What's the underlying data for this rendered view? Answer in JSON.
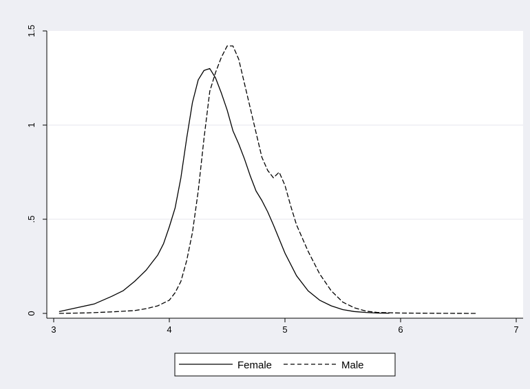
{
  "chart_data": {
    "type": "line",
    "title": "",
    "xlabel": "",
    "ylabel": "",
    "xlim": [
      3,
      7
    ],
    "ylim": [
      0,
      1.5
    ],
    "xticks": [
      3,
      4,
      5,
      6,
      7
    ],
    "xtick_labels": [
      "3",
      "4",
      "5",
      "6",
      "7"
    ],
    "yticks": [
      0,
      0.5,
      1,
      1.5
    ],
    "ytick_labels": [
      "0",
      ".5",
      "1",
      "1.5"
    ],
    "grid": "horizontal",
    "legend_position": "bottom",
    "series": [
      {
        "name": "Female",
        "style": "solid",
        "color": "#000000",
        "x": [
          3.05,
          3.2,
          3.35,
          3.5,
          3.6,
          3.7,
          3.75,
          3.8,
          3.85,
          3.9,
          3.95,
          4.0,
          4.05,
          4.1,
          4.15,
          4.2,
          4.25,
          4.3,
          4.35,
          4.4,
          4.45,
          4.5,
          4.55,
          4.6,
          4.65,
          4.7,
          4.75,
          4.8,
          4.85,
          4.9,
          5.0,
          5.1,
          5.2,
          5.3,
          5.4,
          5.5,
          5.6,
          5.7,
          5.8,
          5.9
        ],
        "y": [
          0.01,
          0.03,
          0.05,
          0.09,
          0.12,
          0.17,
          0.2,
          0.23,
          0.27,
          0.31,
          0.37,
          0.46,
          0.56,
          0.72,
          0.93,
          1.12,
          1.24,
          1.29,
          1.3,
          1.25,
          1.17,
          1.08,
          0.97,
          0.9,
          0.82,
          0.73,
          0.65,
          0.6,
          0.54,
          0.47,
          0.32,
          0.2,
          0.12,
          0.07,
          0.04,
          0.02,
          0.01,
          0.005,
          0.002,
          0.001
        ]
      },
      {
        "name": "Male",
        "style": "dashed",
        "color": "#000000",
        "x": [
          3.05,
          3.3,
          3.5,
          3.7,
          3.8,
          3.9,
          4.0,
          4.05,
          4.1,
          4.15,
          4.2,
          4.25,
          4.3,
          4.35,
          4.4,
          4.45,
          4.5,
          4.55,
          4.6,
          4.65,
          4.7,
          4.75,
          4.8,
          4.85,
          4.9,
          4.95,
          5.0,
          5.05,
          5.1,
          5.2,
          5.3,
          5.4,
          5.5,
          5.6,
          5.7,
          5.8,
          6.0,
          6.2,
          6.4,
          6.66
        ],
        "y": [
          0.0,
          0.003,
          0.008,
          0.015,
          0.025,
          0.04,
          0.07,
          0.11,
          0.17,
          0.28,
          0.43,
          0.65,
          0.93,
          1.18,
          1.28,
          1.36,
          1.42,
          1.42,
          1.35,
          1.22,
          1.09,
          0.96,
          0.83,
          0.76,
          0.72,
          0.75,
          0.68,
          0.57,
          0.47,
          0.33,
          0.21,
          0.12,
          0.06,
          0.03,
          0.012,
          0.005,
          0.002,
          0.001,
          0.0005,
          0.0
        ]
      }
    ]
  }
}
